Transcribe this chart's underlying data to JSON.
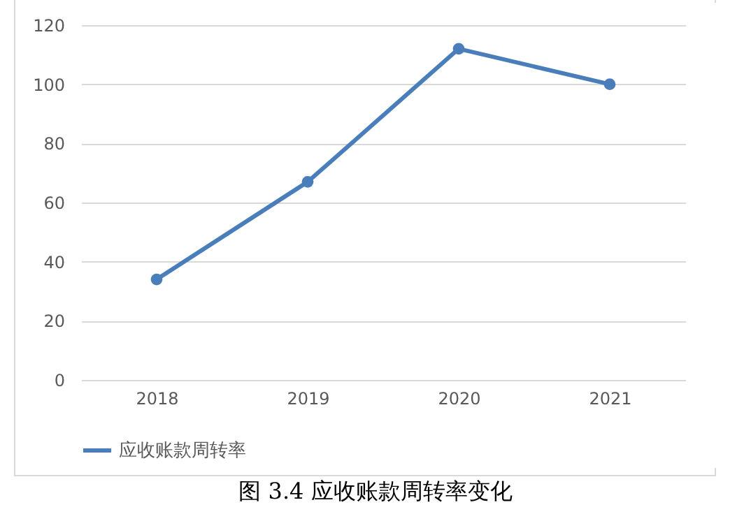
{
  "chart_data": {
    "type": "line",
    "categories": [
      "2018",
      "2019",
      "2020",
      "2021"
    ],
    "series": [
      {
        "name": "应收账款周转率",
        "color": "#4a7ebb",
        "values": [
          34,
          67,
          112,
          100
        ]
      }
    ],
    "ylim": [
      0,
      120
    ],
    "yticks": [
      0,
      20,
      40,
      60,
      80,
      100,
      120
    ],
    "grid": "y",
    "legend": "bottom",
    "marker": "circle",
    "annotations": [
      "图 3.4 应收账款周转率变化"
    ]
  }
}
